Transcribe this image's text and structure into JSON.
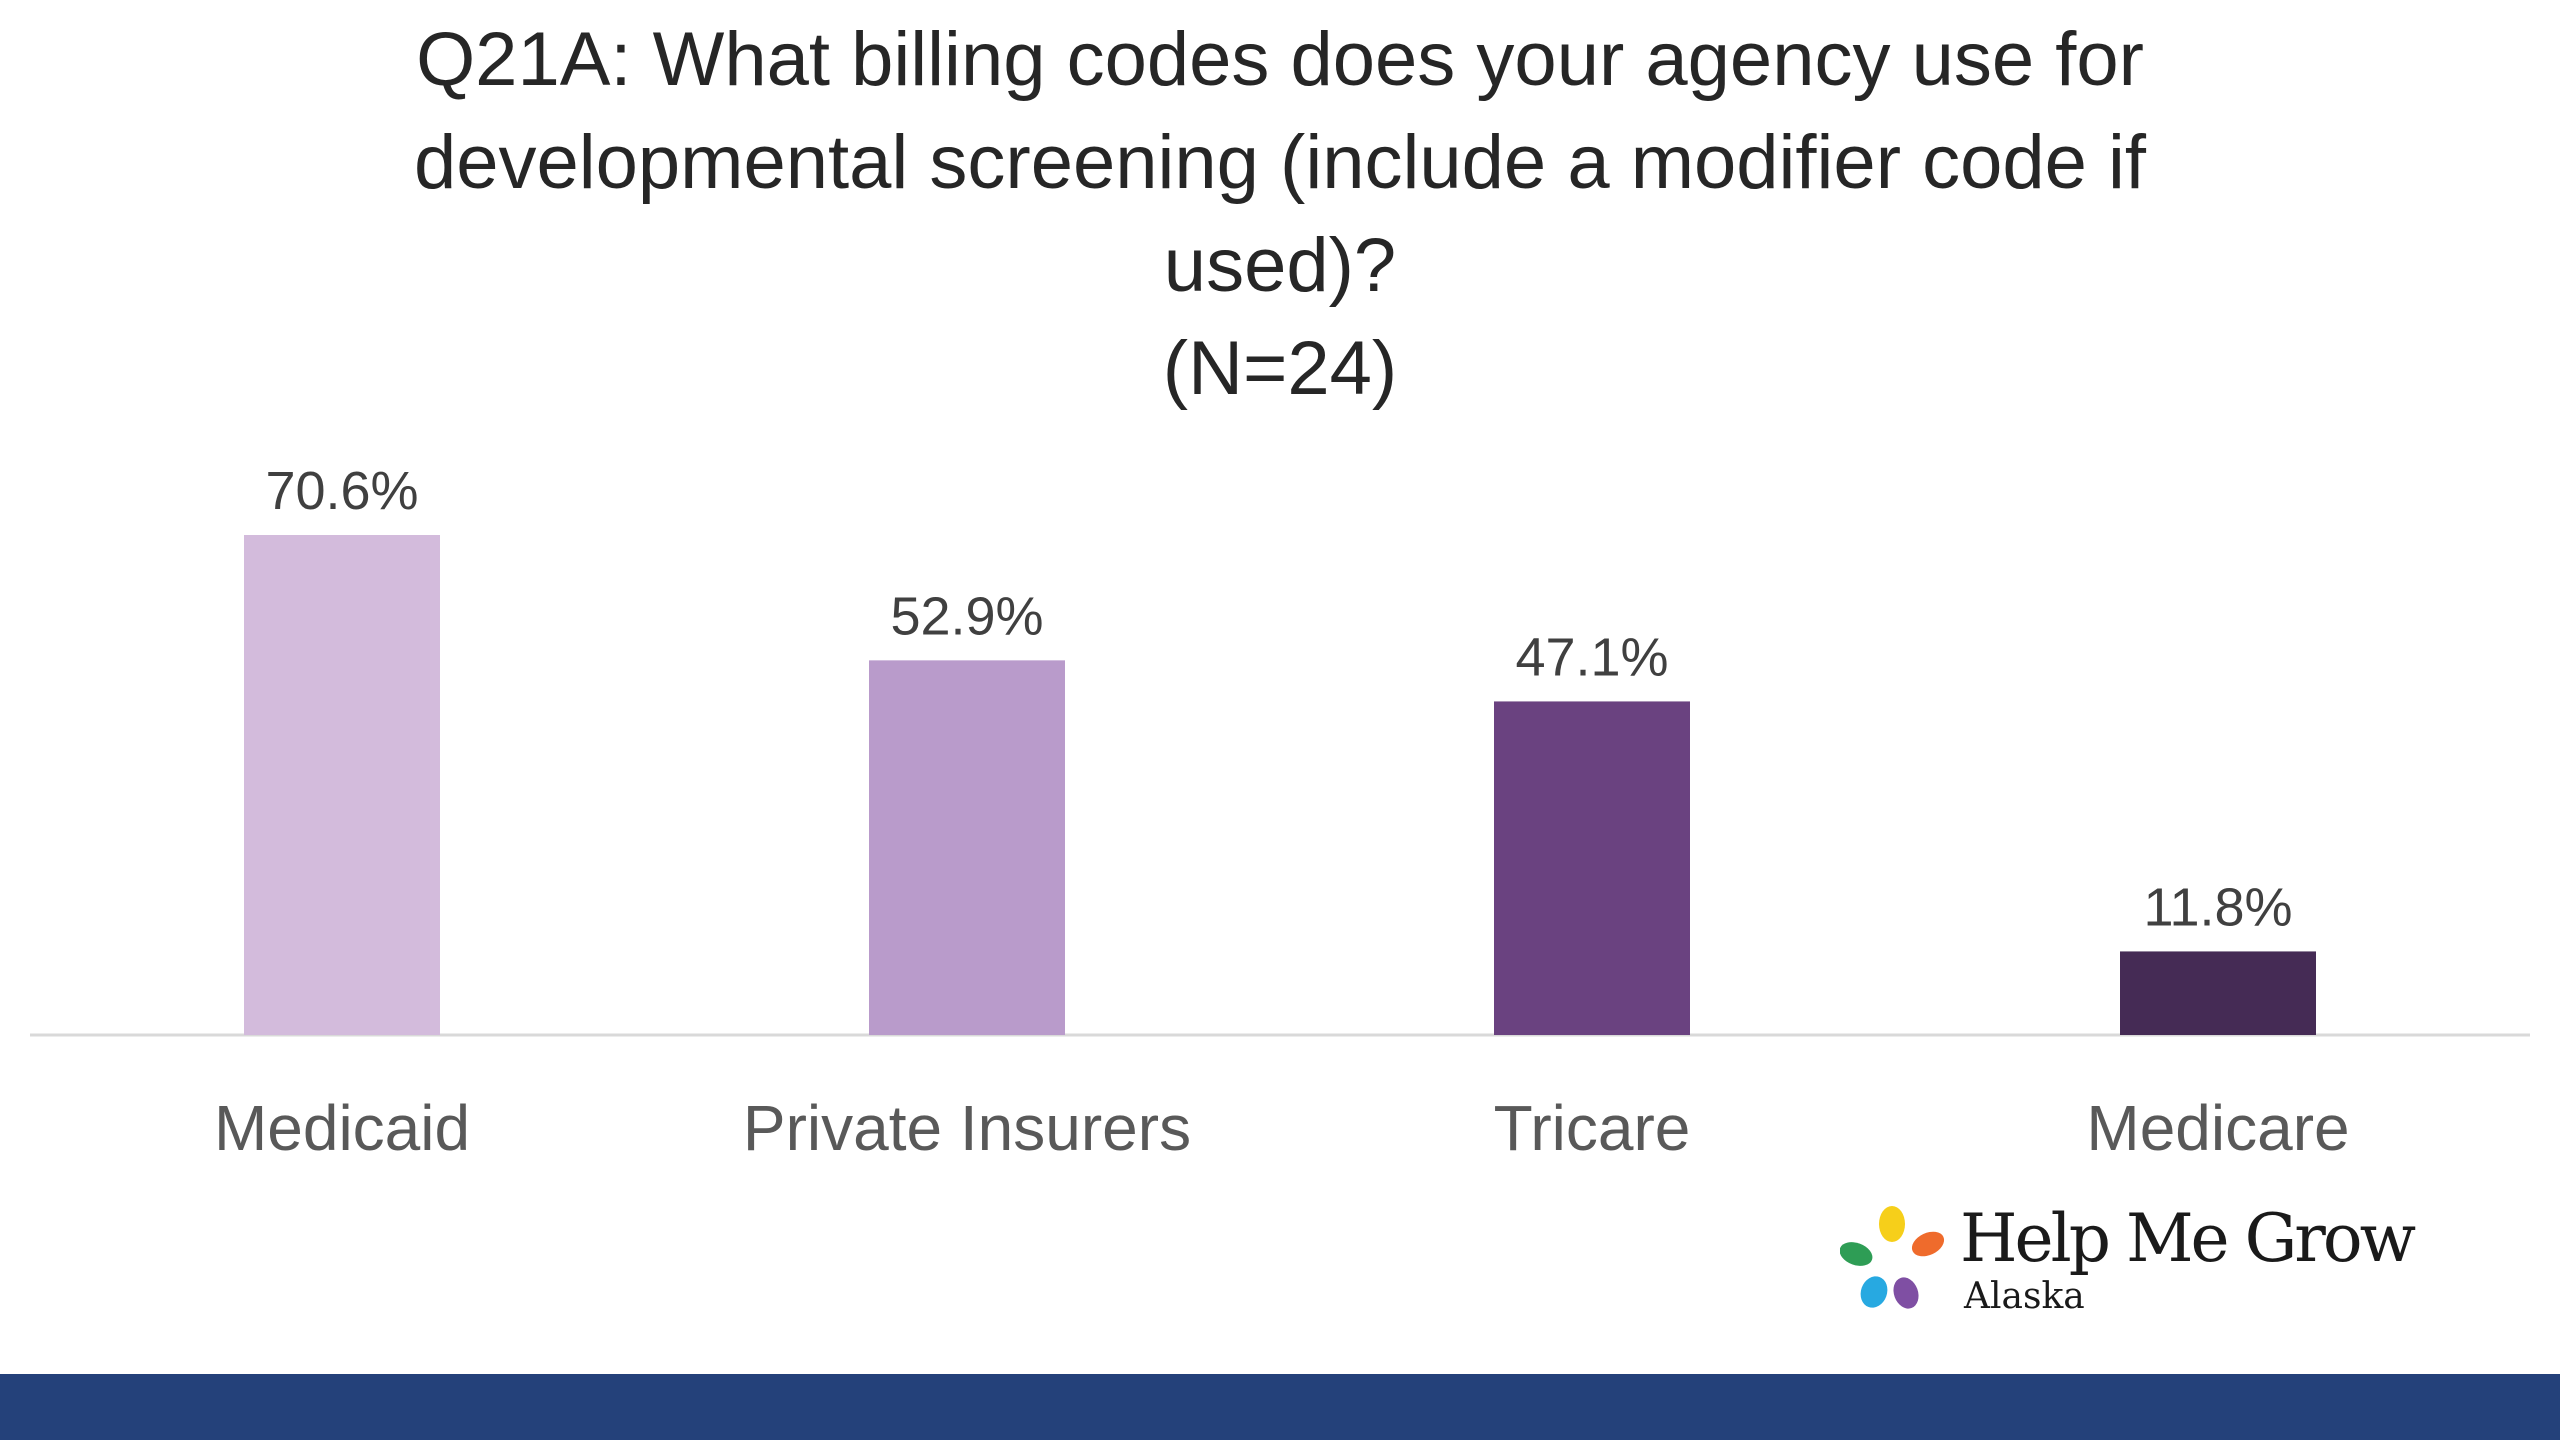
{
  "title_lines": [
    "Q21A: What billing codes does your agency use for",
    "developmental screening (include a modifier code if",
    "used)?",
    "(N=24)"
  ],
  "chart_data": {
    "type": "bar",
    "title": "Q21A: What billing codes does your agency use for developmental screening (include a modifier code if used)? (N=24)",
    "categories": [
      "Medicaid",
      "Private Insurers",
      "Tricare",
      "Medicare"
    ],
    "values": [
      70.6,
      52.9,
      47.1,
      11.8
    ],
    "value_labels": [
      "70.6%",
      "52.9%",
      "47.1%",
      "11.8%"
    ],
    "bar_colors": [
      "#d3bbdc",
      "#b99bcb",
      "#6a4280",
      "#452b55"
    ],
    "xlabel": "",
    "ylabel": "",
    "ylim": [
      0,
      80
    ],
    "grid": false,
    "legend": "none"
  },
  "logo": {
    "name": "Help Me Grow",
    "sub": "Alaska",
    "petal_colors": [
      "#f6cf1a",
      "#ef6b2c",
      "#7f4fa3",
      "#27a9e1",
      "#2e9d55"
    ]
  },
  "footer": {
    "color": "#24417a"
  }
}
